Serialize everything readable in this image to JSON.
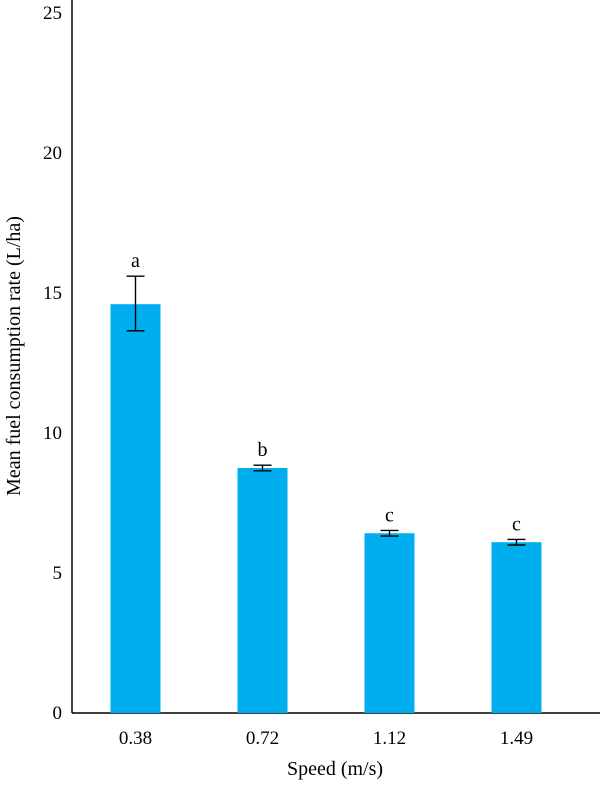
{
  "chart_data": {
    "type": "bar",
    "title": "",
    "xlabel": "Speed (m/s)",
    "ylabel": "Mean fuel consumption rate (L/ha)",
    "categories": [
      "0.38",
      "0.72",
      "1.12",
      "1.49"
    ],
    "values": [
      14.6,
      8.75,
      6.42,
      6.1
    ],
    "error_low": [
      13.65,
      8.65,
      6.32,
      6.0
    ],
    "error_high": [
      15.6,
      8.85,
      6.52,
      6.2
    ],
    "group_letters": [
      "a",
      "b",
      "c",
      "c"
    ],
    "ylim": [
      0,
      25
    ],
    "yticks": [
      "0",
      "5",
      "10",
      "15",
      "20",
      "25"
    ],
    "grid": false,
    "bar_color": "#00aeef"
  }
}
